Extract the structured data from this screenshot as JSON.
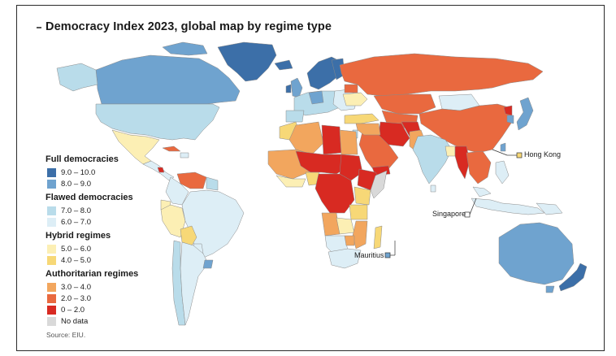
{
  "title": "Democracy Index 2023, global map by regime type",
  "source": "Source: EIU.",
  "colors": {
    "full_high": "#3c6fa8",
    "full_low": "#6fa3cf",
    "flawed_high": "#b9dcea",
    "flawed_low": "#ddeef6",
    "hybrid_high": "#fcefb4",
    "hybrid_low": "#f7d877",
    "auth_high": "#f2a65e",
    "auth_mid": "#e9693f",
    "auth_low": "#d82a22",
    "nodata": "#d9d9d9",
    "ocean": "#ffffff",
    "border": "#7a7a7a"
  },
  "legend": {
    "full": {
      "label": "Full democracies",
      "items": [
        {
          "label": "9.0 – 10.0",
          "color": "#3c6fa8"
        },
        {
          "label": "8.0 – 9.0",
          "color": "#6fa3cf"
        }
      ]
    },
    "flawed": {
      "label": "Flawed democracies",
      "items": [
        {
          "label": "7.0 – 8.0",
          "color": "#b9dcea"
        },
        {
          "label": "6.0 – 7.0",
          "color": "#ddeef6"
        }
      ]
    },
    "hybrid": {
      "label": "Hybrid regimes",
      "items": [
        {
          "label": "5.0 – 6.0",
          "color": "#fcefb4"
        },
        {
          "label": "4.0 – 5.0",
          "color": "#f7d877"
        }
      ]
    },
    "auth": {
      "label": "Authoritarian regimes",
      "items": [
        {
          "label": "3.0 – 4.0",
          "color": "#f2a65e"
        },
        {
          "label": "2.0 – 3.0",
          "color": "#e9693f"
        },
        {
          "label": "0 – 2.0",
          "color": "#d82a22"
        }
      ]
    },
    "nodata": {
      "label": "No data",
      "color": "#d9d9d9"
    }
  },
  "callouts": {
    "hong_kong": "Hong Kong",
    "singapore": "Singapore",
    "mauritius": "Mauritius"
  }
}
